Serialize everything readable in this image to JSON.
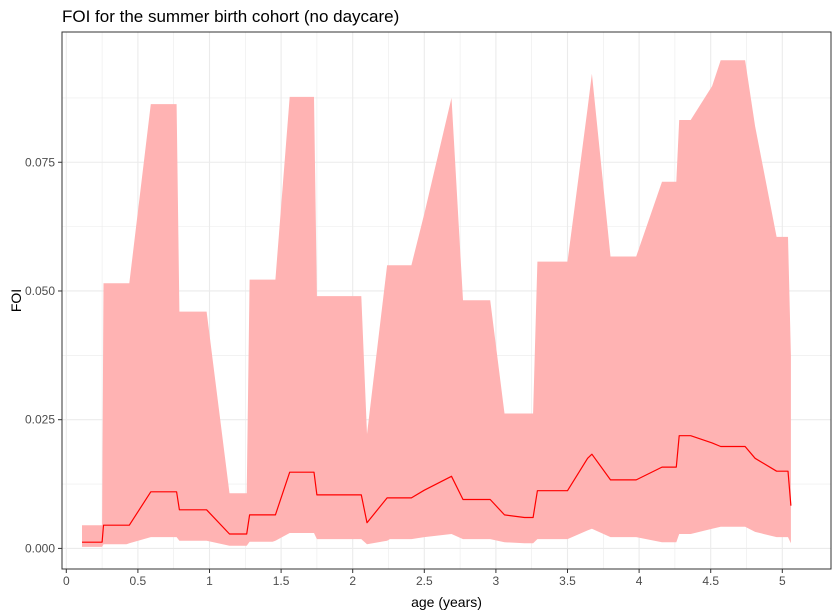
{
  "chart_data": {
    "type": "area",
    "title": "FOI for the summer birth cohort (no daycare)",
    "xlabel": "age (years)",
    "ylabel": "FOI",
    "xlim": [
      -0.03,
      5.34
    ],
    "ylim": [
      -0.004,
      0.1003
    ],
    "x_ticks": [
      0,
      0.5,
      1,
      1.5,
      2,
      2.5,
      3,
      3.5,
      4,
      4.5,
      5
    ],
    "x_tick_labels": [
      "0",
      "0.5",
      "1",
      "1.5",
      "2",
      "2.5",
      "3",
      "3.5",
      "4",
      "4.5",
      "5"
    ],
    "y_ticks": [
      0,
      0.025,
      0.05,
      0.075
    ],
    "y_tick_labels": [
      "0.000",
      "0.025",
      "0.050",
      "0.075"
    ],
    "grid": true,
    "legend": "none",
    "colors": {
      "line": "#ff0000",
      "ribbon": "#ffb3b3",
      "grid": "#ebebeb",
      "panel_border": "#333333"
    },
    "series": [
      {
        "x": [
          0.11,
          0.25,
          0.26,
          0.42,
          0.44,
          0.59,
          0.61,
          0.77,
          0.79,
          0.96,
          0.98,
          1.14,
          1.26,
          1.28,
          1.44,
          1.46,
          1.56,
          1.58,
          1.73,
          1.75,
          1.96,
          2.06,
          2.1,
          2.24,
          2.26,
          2.41,
          2.5,
          2.69,
          2.77,
          2.96,
          3.06,
          3.2,
          3.26,
          3.29,
          3.5,
          3.64,
          3.67,
          3.8,
          3.82,
          3.96,
          3.98,
          4.16,
          4.26,
          4.28,
          4.34,
          4.36,
          4.51,
          4.57,
          4.72,
          4.74,
          4.81,
          4.96,
          5.04,
          5.06
        ],
        "y": [
          0.0012,
          0.0012,
          0.0045,
          0.0045,
          0.0045,
          0.011,
          0.011,
          0.011,
          0.0075,
          0.0075,
          0.0075,
          0.0028,
          0.0028,
          0.0065,
          0.0065,
          0.0065,
          0.0148,
          0.0148,
          0.0148,
          0.0104,
          0.0104,
          0.0104,
          0.005,
          0.0098,
          0.0098,
          0.0098,
          0.0113,
          0.014,
          0.0095,
          0.0095,
          0.0065,
          0.006,
          0.006,
          0.0112,
          0.0112,
          0.0175,
          0.0183,
          0.0133,
          0.0133,
          0.0133,
          0.0133,
          0.0158,
          0.0158,
          0.0219,
          0.0219,
          0.0219,
          0.0205,
          0.0198,
          0.0198,
          0.0198,
          0.0175,
          0.015,
          0.015,
          0.0083
        ],
        "lower": [
          0.0003,
          0.0003,
          0.0008,
          0.0008,
          0.001,
          0.0022,
          0.0022,
          0.0022,
          0.0015,
          0.0015,
          0.0015,
          0.0005,
          0.0005,
          0.0013,
          0.0013,
          0.0015,
          0.003,
          0.003,
          0.003,
          0.0018,
          0.0018,
          0.0018,
          0.0008,
          0.0015,
          0.0018,
          0.0018,
          0.0022,
          0.0028,
          0.0018,
          0.0018,
          0.0012,
          0.001,
          0.001,
          0.0018,
          0.0018,
          0.0035,
          0.0038,
          0.0022,
          0.0022,
          0.0022,
          0.0022,
          0.0012,
          0.0012,
          0.0028,
          0.0028,
          0.0028,
          0.0038,
          0.0042,
          0.0042,
          0.0042,
          0.0032,
          0.0022,
          0.0022,
          0.001
        ],
        "upper": [
          0.0045,
          0.0045,
          0.0515,
          0.0515,
          0.0515,
          0.0863,
          0.0863,
          0.0863,
          0.046,
          0.046,
          0.046,
          0.0107,
          0.0107,
          0.0522,
          0.0522,
          0.0522,
          0.0877,
          0.0877,
          0.0877,
          0.049,
          0.049,
          0.049,
          0.0222,
          0.055,
          0.055,
          0.055,
          0.065,
          0.0875,
          0.0482,
          0.0482,
          0.0262,
          0.0262,
          0.0262,
          0.0557,
          0.0557,
          0.0855,
          0.0922,
          0.0567,
          0.0567,
          0.0567,
          0.0567,
          0.0712,
          0.0712,
          0.0832,
          0.0832,
          0.0832,
          0.0898,
          0.0948,
          0.0948,
          0.0948,
          0.082,
          0.0605,
          0.0605,
          0.0375
        ]
      }
    ]
  }
}
